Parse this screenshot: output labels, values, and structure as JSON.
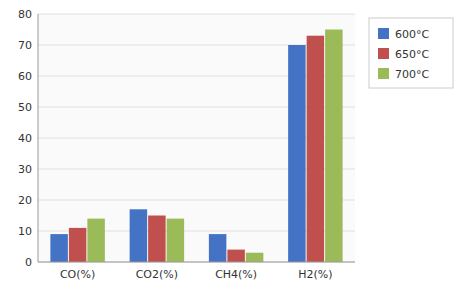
{
  "chart_data": {
    "type": "bar",
    "categories": [
      "CO(%)",
      "CO2(%)",
      "CH4(%)",
      "H2(%)"
    ],
    "series": [
      {
        "name": "600°C",
        "color": "#4472C4",
        "values": [
          9,
          17,
          9,
          70
        ]
      },
      {
        "name": "650°C",
        "color": "#C0504D",
        "values": [
          11,
          15,
          4,
          73
        ]
      },
      {
        "name": "700°C",
        "color": "#9BBB59",
        "values": [
          14,
          14,
          3,
          75
        ]
      }
    ],
    "ylim": [
      0,
      80
    ],
    "yticks": [
      0,
      10,
      20,
      30,
      40,
      50,
      60,
      70,
      80
    ],
    "grid": true,
    "legend": "right"
  }
}
